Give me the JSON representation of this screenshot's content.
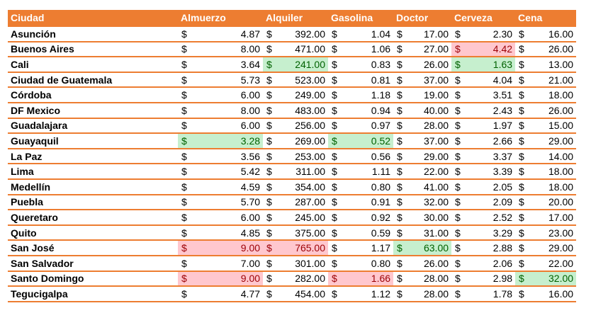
{
  "columns": [
    "Ciudad",
    "Almuerzo",
    "Alquiler",
    "Gasolina",
    "Doctor",
    "Cerveza",
    "Cena"
  ],
  "currency_symbol": "$",
  "colors": {
    "header_bg": "#ed7d31",
    "header_text": "#ffffff",
    "good_bg": "#c6efce",
    "good_text": "#006100",
    "bad_bg": "#ffc7ce",
    "bad_text": "#9c0006"
  },
  "rows": [
    {
      "city": "Asunción",
      "values": [
        "4.87",
        "392.00",
        "1.04",
        "17.00",
        "2.30",
        "16.00"
      ],
      "flags": [
        "",
        "",
        "",
        "",
        "",
        ""
      ]
    },
    {
      "city": "Buenos Aires",
      "values": [
        "8.00",
        "471.00",
        "1.06",
        "27.00",
        "4.42",
        "26.00"
      ],
      "flags": [
        "",
        "",
        "",
        "",
        "bad",
        ""
      ]
    },
    {
      "city": "Cali",
      "values": [
        "3.64",
        "241.00",
        "0.83",
        "26.00",
        "1.63",
        "13.00"
      ],
      "flags": [
        "",
        "good",
        "",
        "",
        "good",
        ""
      ]
    },
    {
      "city": "Ciudad de Guatemala",
      "values": [
        "5.73",
        "523.00",
        "0.81",
        "37.00",
        "4.04",
        "21.00"
      ],
      "flags": [
        "",
        "",
        "",
        "",
        "",
        ""
      ]
    },
    {
      "city": "Córdoba",
      "values": [
        "6.00",
        "249.00",
        "1.18",
        "19.00",
        "3.51",
        "18.00"
      ],
      "flags": [
        "",
        "",
        "",
        "",
        "",
        ""
      ]
    },
    {
      "city": "DF Mexico",
      "values": [
        "8.00",
        "483.00",
        "0.94",
        "40.00",
        "2.43",
        "26.00"
      ],
      "flags": [
        "",
        "",
        "",
        "",
        "",
        ""
      ]
    },
    {
      "city": "Guadalajara",
      "values": [
        "6.00",
        "256.00",
        "0.97",
        "28.00",
        "1.97",
        "15.00"
      ],
      "flags": [
        "",
        "",
        "",
        "",
        "",
        ""
      ]
    },
    {
      "city": "Guayaquil",
      "values": [
        "3.28",
        "269.00",
        "0.52",
        "37.00",
        "2.66",
        "29.00"
      ],
      "flags": [
        "good",
        "",
        "good",
        "",
        "",
        ""
      ]
    },
    {
      "city": "La Paz",
      "values": [
        "3.56",
        "253.00",
        "0.56",
        "29.00",
        "3.37",
        "14.00"
      ],
      "flags": [
        "",
        "",
        "",
        "",
        "",
        ""
      ]
    },
    {
      "city": "Lima",
      "values": [
        "5.42",
        "311.00",
        "1.11",
        "22.00",
        "3.39",
        "18.00"
      ],
      "flags": [
        "",
        "",
        "",
        "",
        "",
        ""
      ]
    },
    {
      "city": "Medellín",
      "values": [
        "4.59",
        "354.00",
        "0.80",
        "41.00",
        "2.05",
        "18.00"
      ],
      "flags": [
        "",
        "",
        "",
        "",
        "",
        ""
      ]
    },
    {
      "city": "Puebla",
      "values": [
        "5.70",
        "287.00",
        "0.91",
        "32.00",
        "2.09",
        "20.00"
      ],
      "flags": [
        "",
        "",
        "",
        "",
        "",
        ""
      ]
    },
    {
      "city": "Queretaro",
      "values": [
        "6.00",
        "245.00",
        "0.92",
        "30.00",
        "2.52",
        "17.00"
      ],
      "flags": [
        "",
        "",
        "",
        "",
        "",
        ""
      ]
    },
    {
      "city": "Quito",
      "values": [
        "4.85",
        "375.00",
        "0.59",
        "31.00",
        "3.29",
        "23.00"
      ],
      "flags": [
        "",
        "",
        "",
        "",
        "",
        ""
      ]
    },
    {
      "city": "San José",
      "values": [
        "9.00",
        "765.00",
        "1.17",
        "63.00",
        "2.88",
        "29.00"
      ],
      "flags": [
        "bad",
        "bad",
        "",
        "good",
        "",
        ""
      ]
    },
    {
      "city": "San Salvador",
      "values": [
        "7.00",
        "301.00",
        "0.80",
        "26.00",
        "2.06",
        "22.00"
      ],
      "flags": [
        "",
        "",
        "",
        "",
        "",
        ""
      ]
    },
    {
      "city": "Santo Domingo",
      "values": [
        "9.00",
        "282.00",
        "1.66",
        "28.00",
        "2.98",
        "32.00"
      ],
      "flags": [
        "bad",
        "",
        "bad",
        "",
        "",
        "good"
      ]
    },
    {
      "city": "Tegucigalpa",
      "values": [
        "4.77",
        "454.00",
        "1.12",
        "28.00",
        "1.78",
        "16.00"
      ],
      "flags": [
        "",
        "",
        "",
        "",
        "",
        ""
      ]
    }
  ]
}
